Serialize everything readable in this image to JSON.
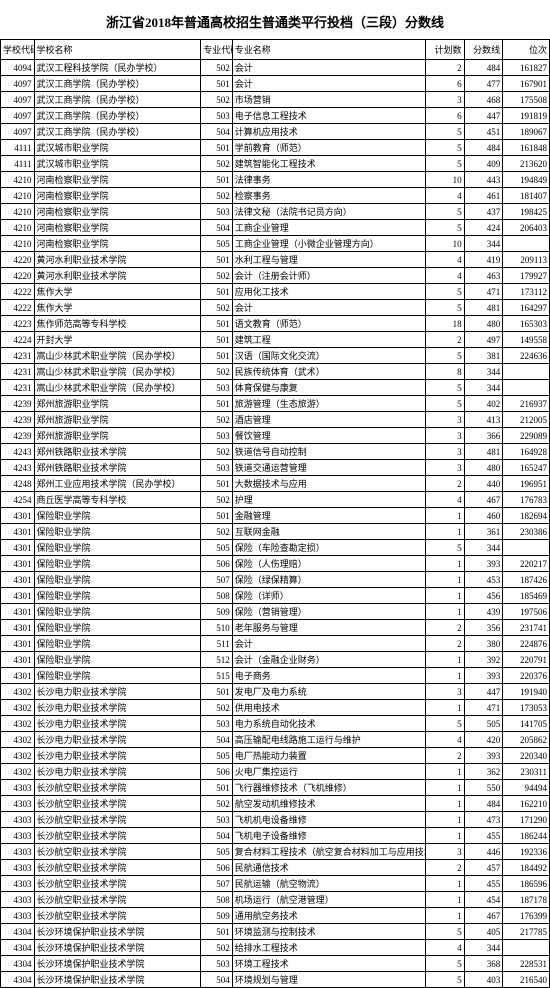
{
  "title": "浙江省2018年普通高校招生普通类平行投档（三段）分数线",
  "columns": [
    "学校代码",
    "学校名称",
    "专业代码",
    "专业名称",
    "计划数",
    "分数线",
    "位次"
  ],
  "col_classes": [
    "c0",
    "c1",
    "c2",
    "c3",
    "c4",
    "c5",
    "c6"
  ],
  "rows": [
    [
      "4094",
      "武汉工程科技学院（民办学校）",
      "502",
      "会计",
      "2",
      "484",
      "161827"
    ],
    [
      "4097",
      "武汉工商学院（民办学校）",
      "501",
      "会计",
      "6",
      "477",
      "167901"
    ],
    [
      "4097",
      "武汉工商学院（民办学校）",
      "502",
      "市场营销",
      "3",
      "468",
      "175508"
    ],
    [
      "4097",
      "武汉工商学院（民办学校）",
      "503",
      "电子信息工程技术",
      "6",
      "447",
      "191819"
    ],
    [
      "4097",
      "武汉工商学院（民办学校）",
      "504",
      "计算机应用技术",
      "5",
      "451",
      "189067"
    ],
    [
      "4111",
      "武汉城市职业学院",
      "501",
      "学前教育（师范）",
      "5",
      "484",
      "161848"
    ],
    [
      "4111",
      "武汉城市职业学院",
      "502",
      "建筑智能化工程技术",
      "5",
      "409",
      "213620"
    ],
    [
      "4210",
      "河南检察职业学院",
      "501",
      "法律事务",
      "10",
      "443",
      "194849"
    ],
    [
      "4210",
      "河南检察职业学院",
      "502",
      "检察事务",
      "4",
      "461",
      "181407"
    ],
    [
      "4210",
      "河南检察职业学院",
      "503",
      "法律文秘（法院书记员方向）",
      "5",
      "437",
      "198425"
    ],
    [
      "4210",
      "河南检察职业学院",
      "504",
      "工商企业管理",
      "5",
      "424",
      "206403"
    ],
    [
      "4210",
      "河南检察职业学院",
      "505",
      "工商企业管理（小微企业管理方向）",
      "10",
      "344",
      ""
    ],
    [
      "4220",
      "黄河水利职业技术学院",
      "501",
      "水利工程与管理",
      "4",
      "419",
      "209113"
    ],
    [
      "4220",
      "黄河水利职业技术学院",
      "502",
      "会计（注册会计师）",
      "4",
      "463",
      "179927"
    ],
    [
      "4222",
      "焦作大学",
      "501",
      "应用化工技术",
      "5",
      "471",
      "173112"
    ],
    [
      "4222",
      "焦作大学",
      "502",
      "会计",
      "5",
      "481",
      "164297"
    ],
    [
      "4223",
      "焦作师范高等专科学校",
      "501",
      "语文教育（师范）",
      "18",
      "480",
      "165303"
    ],
    [
      "4224",
      "开封大学",
      "501",
      "建筑工程",
      "2",
      "497",
      "149558"
    ],
    [
      "4231",
      "嵩山少林武术职业学院（民办学校）",
      "501",
      "汉语（国际文化交流）",
      "5",
      "381",
      "224636"
    ],
    [
      "4231",
      "嵩山少林武术职业学院（民办学校）",
      "502",
      "民族传统体育（武术）",
      "8",
      "344",
      ""
    ],
    [
      "4231",
      "嵩山少林武术职业学院（民办学校）",
      "503",
      "体育保健与康复",
      "5",
      "344",
      ""
    ],
    [
      "4239",
      "郑州旅游职业学院",
      "501",
      "旅游管理（生态旅游）",
      "5",
      "402",
      "216937"
    ],
    [
      "4239",
      "郑州旅游职业学院",
      "502",
      "酒店管理",
      "3",
      "413",
      "212005"
    ],
    [
      "4239",
      "郑州旅游职业学院",
      "503",
      "餐饮管理",
      "3",
      "366",
      "229089"
    ],
    [
      "4243",
      "郑州铁路职业技术学院",
      "502",
      "铁道信号自动控制",
      "3",
      "481",
      "164928"
    ],
    [
      "4243",
      "郑州铁路职业技术学院",
      "503",
      "铁道交通运营管理",
      "3",
      "480",
      "165247"
    ],
    [
      "4248",
      "郑州工业应用技术学院（民办学校）",
      "501",
      "大数据技术与应用",
      "2",
      "440",
      "196951"
    ],
    [
      "4254",
      "商丘医学高等专科学校",
      "502",
      "护理",
      "4",
      "467",
      "176783"
    ],
    [
      "4301",
      "保险职业学院",
      "501",
      "金融管理",
      "1",
      "460",
      "182694"
    ],
    [
      "4301",
      "保险职业学院",
      "502",
      "互联网金融",
      "1",
      "361",
      "230386"
    ],
    [
      "4301",
      "保险职业学院",
      "505",
      "保险（车险查勘定损）",
      "5",
      "344",
      ""
    ],
    [
      "4301",
      "保险职业学院",
      "506",
      "保险（人伤理赔）",
      "1",
      "393",
      "220217"
    ],
    [
      "4301",
      "保险职业学院",
      "507",
      "保险（绿保精算）",
      "1",
      "453",
      "187426"
    ],
    [
      "4301",
      "保险职业学院",
      "508",
      "保险（详师）",
      "1",
      "456",
      "185469"
    ],
    [
      "4301",
      "保险职业学院",
      "509",
      "保险（营销管理）",
      "1",
      "439",
      "197506"
    ],
    [
      "4301",
      "保险职业学院",
      "510",
      "老年服务与管理",
      "2",
      "356",
      "231741"
    ],
    [
      "4301",
      "保险职业学院",
      "511",
      "会计",
      "2",
      "380",
      "224876"
    ],
    [
      "4301",
      "保险职业学院",
      "512",
      "会计（金融企业财务）",
      "1",
      "392",
      "220791"
    ],
    [
      "4301",
      "保险职业学院",
      "515",
      "电子商务",
      "1",
      "393",
      "220376"
    ],
    [
      "4302",
      "长沙电力职业技术学院",
      "501",
      "发电厂及电力系统",
      "3",
      "447",
      "191940"
    ],
    [
      "4302",
      "长沙电力职业技术学院",
      "502",
      "供用电技术",
      "1",
      "471",
      "173053"
    ],
    [
      "4302",
      "长沙电力职业技术学院",
      "503",
      "电力系统自动化技术",
      "5",
      "505",
      "141705"
    ],
    [
      "4302",
      "长沙电力职业技术学院",
      "504",
      "高压输配电线路施工运行与维护",
      "4",
      "420",
      "205862"
    ],
    [
      "4302",
      "长沙电力职业技术学院",
      "505",
      "电厂热能动力装置",
      "2",
      "393",
      "220340"
    ],
    [
      "4302",
      "长沙电力职业技术学院",
      "506",
      "火电厂集控运行",
      "1",
      "362",
      "230311"
    ],
    [
      "4303",
      "长沙航空职业技术学院",
      "501",
      "飞行器维修技术（飞机维修）",
      "1",
      "550",
      "94494"
    ],
    [
      "4303",
      "长沙航空职业技术学院",
      "502",
      "航空发动机维修技术",
      "1",
      "484",
      "162210"
    ],
    [
      "4303",
      "长沙航空职业技术学院",
      "503",
      "飞机机电设备维修",
      "1",
      "473",
      "171290"
    ],
    [
      "4303",
      "长沙航空职业技术学院",
      "504",
      "飞机电子设备维修",
      "1",
      "455",
      "186244"
    ],
    [
      "4303",
      "长沙航空职业技术学院",
      "505",
      "复合材料工程技术（航空复合材料加工与应用技术）",
      "3",
      "446",
      "192336"
    ],
    [
      "4303",
      "长沙航空职业技术学院",
      "506",
      "民航通信技术",
      "2",
      "457",
      "184492"
    ],
    [
      "4303",
      "长沙航空职业技术学院",
      "507",
      "民航运输（航空物流）",
      "1",
      "455",
      "186596"
    ],
    [
      "4303",
      "长沙航空职业技术学院",
      "508",
      "机场运行（航空港管理）",
      "1",
      "454",
      "187178"
    ],
    [
      "4303",
      "长沙航空职业技术学院",
      "509",
      "通用航空务技术",
      "1",
      "467",
      "176399"
    ],
    [
      "4304",
      "长沙环境保护职业技术学院",
      "501",
      "环境监测与控制技术",
      "5",
      "405",
      "217785"
    ],
    [
      "4304",
      "长沙环境保护职业技术学院",
      "502",
      "给排水工程技术",
      "4",
      "344",
      ""
    ],
    [
      "4304",
      "长沙环境保护职业技术学院",
      "503",
      "环境工程技术",
      "5",
      "368",
      "228531"
    ],
    [
      "4304",
      "长沙环境保护职业技术学院",
      "504",
      "环境规划与管理",
      "5",
      "403",
      "216540"
    ]
  ]
}
